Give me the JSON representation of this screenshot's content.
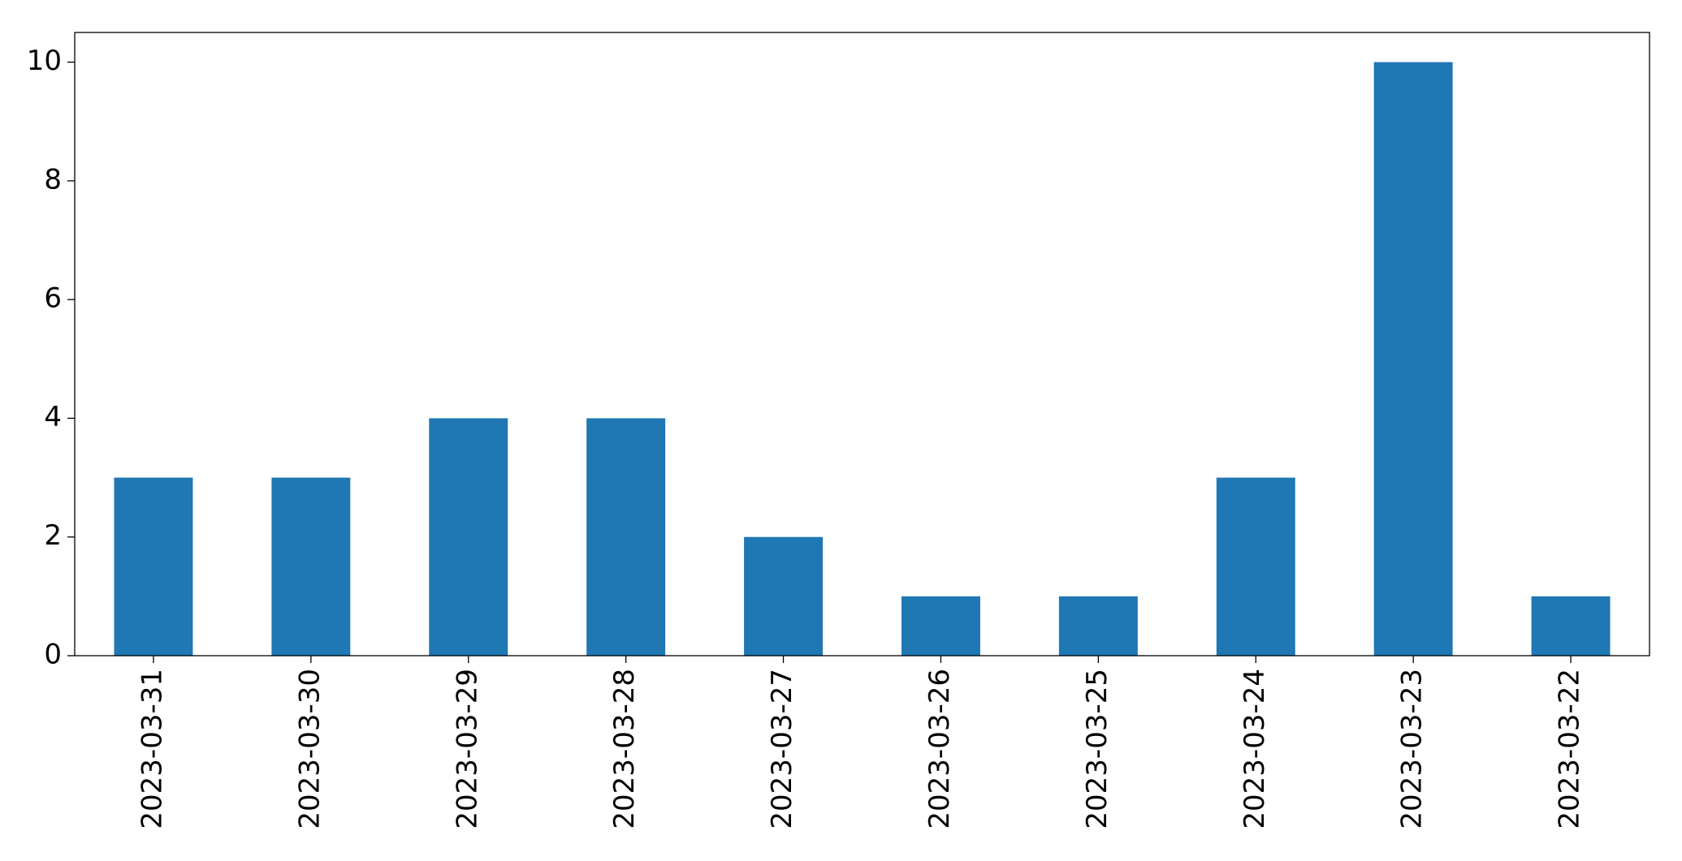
{
  "chart_data": {
    "type": "bar",
    "categories": [
      "2023-03-31",
      "2023-03-30",
      "2023-03-29",
      "2023-03-28",
      "2023-03-27",
      "2023-03-26",
      "2023-03-25",
      "2023-03-24",
      "2023-03-23",
      "2023-03-22"
    ],
    "values": [
      3,
      3,
      4,
      4,
      2,
      1,
      1,
      3,
      10,
      1
    ],
    "color": "#1f77b4",
    "ylim": [
      0,
      10.5
    ],
    "yticks": [
      0,
      2,
      4,
      6,
      8,
      10
    ],
    "grid": false
  }
}
